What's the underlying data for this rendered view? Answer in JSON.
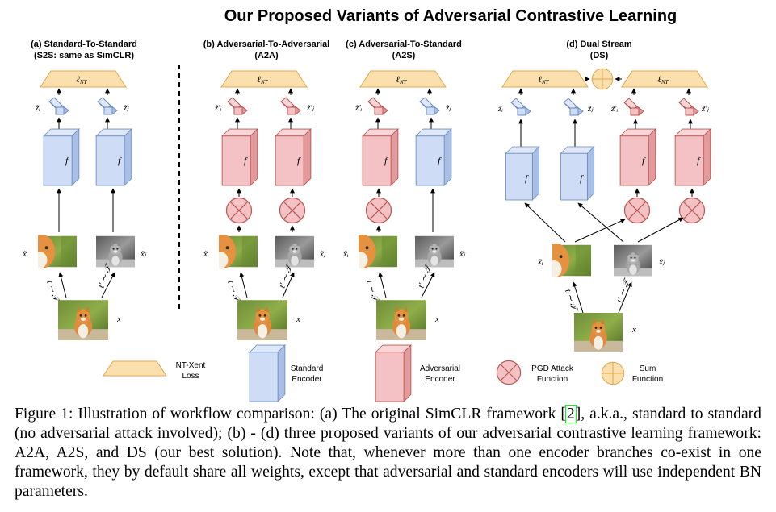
{
  "title": "Our Proposed Variants of Adversarial Contrastive Learning",
  "panels": [
    {
      "label_line1": "(a) Standard-To-Standard",
      "label_line2": "(S2S: same as SimCLR)"
    },
    {
      "label_line1": "(b) Adversarial-To-Adversarial",
      "label_line2": "(A2A)"
    },
    {
      "label_line1": "(c) Adversarial-To-Standard",
      "label_line2": "(A2S)"
    },
    {
      "label_line1": "(d) Dual Stream",
      "label_line2": "(DS)"
    }
  ],
  "math": {
    "loss": "ℓ",
    "loss_sub": "NT",
    "encoder": "f",
    "zi": "z̃ᵢ",
    "zj": "z̃ⱼ",
    "zi_adv": "z̃′ᵢ",
    "zj_adv": "z̃′ⱼ",
    "xi": "x̃ᵢ",
    "xj": "x̃ⱼ",
    "x": "x",
    "t": "t ∼ 𝒯",
    "t_prime": "t′ ∼ 𝒯"
  },
  "legend": {
    "ntxent_line1": "NT-Xent",
    "ntxent_line2": "Loss",
    "standard_line1": "Standard",
    "standard_line2": "Encoder",
    "adversarial_line1": "Adversarial",
    "adversarial_line2": "Encoder",
    "pgd_line1": "PGD Attack",
    "pgd_line2": "Function",
    "sum_line1": "Sum",
    "sum_line2": "Function"
  },
  "colors": {
    "loss_fill": "#fbe0ad",
    "loss_stroke": "#e0a84e",
    "std_fill": "#cfdcf6",
    "std_stroke": "#6c8ebf",
    "adv_fill": "#f4c2c4",
    "adv_stroke": "#b85450",
    "sum_fill": "#fbe0ad",
    "sum_stroke": "#e0a84e"
  },
  "caption": {
    "part1": "Figure 1: Illustration of workflow comparison: (a) The original SimCLR framework [",
    "ref": "2",
    "part2": "], a.k.a., standard to standard (no adversarial attack involved); (b) - (d) three proposed variants of our adversarial contrastive learning framework: A2A, A2S, and DS (our best solution). Note that, whenever more than one encoder branches co-exist in one framework, they by default share all weights, except that adversarial and standard encoders will use independent BN parameters."
  }
}
